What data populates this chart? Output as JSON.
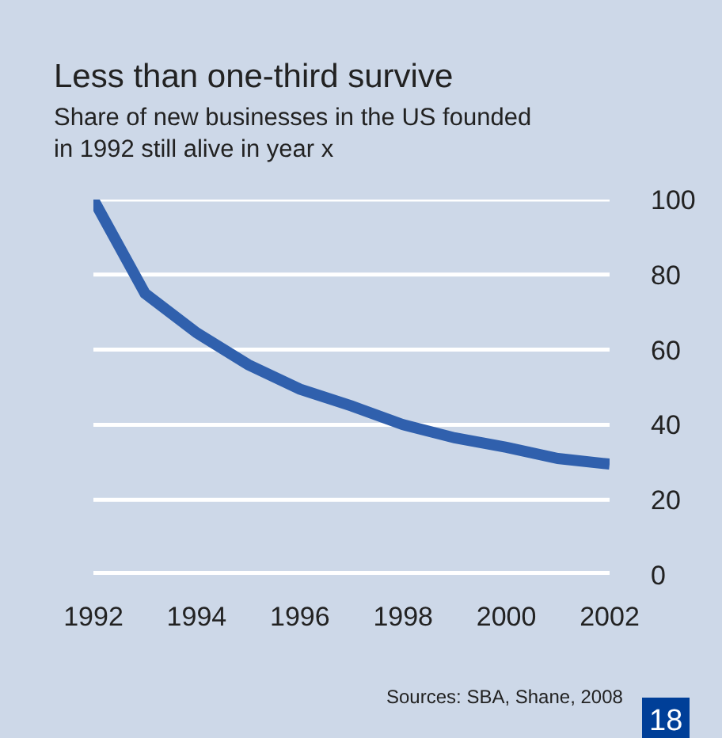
{
  "chart_data": {
    "type": "line",
    "title": "Less than one-third survive",
    "subtitle": "Share of new businesses in the US founded in 1992 still alive in year x",
    "x": [
      1992,
      1993,
      1994,
      1995,
      1996,
      1997,
      1998,
      1999,
      2000,
      2001,
      2002
    ],
    "series": [
      {
        "color": "#3060ad",
        "values": [
          100,
          75,
          64.5,
          56,
          49.5,
          45,
          40,
          36.5,
          34,
          31,
          29.5
        ]
      }
    ],
    "xlim": [
      1992,
      2002
    ],
    "xticks": [
      1992,
      1994,
      1996,
      1998,
      2000,
      2002
    ],
    "ylim": [
      0,
      100
    ],
    "yticks": [
      0,
      20,
      40,
      60,
      80,
      100
    ],
    "grid": "y",
    "marker": "none",
    "line_style": "solid",
    "annotations": [
      "Sources: SBA, Shane, 2008",
      "18"
    ]
  }
}
